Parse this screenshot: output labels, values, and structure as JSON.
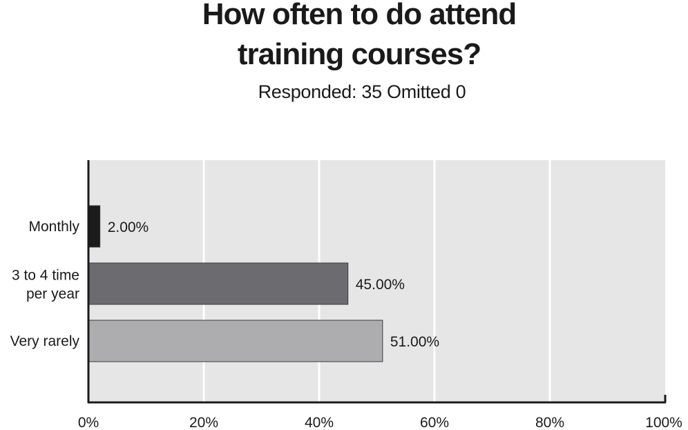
{
  "chart_data": {
    "type": "bar",
    "orientation": "horizontal",
    "title_lines": [
      "How often to do attend",
      "training courses?"
    ],
    "subtitle": "Responded: 35 Omitted 0",
    "categories": [
      "Monthly",
      "3 to 4 time per year",
      "Very rarely"
    ],
    "category_label_lines": [
      [
        "Monthly"
      ],
      [
        "3 to 4 time",
        "per year"
      ],
      [
        "Very rarely"
      ]
    ],
    "values": [
      2.0,
      45.0,
      51.0
    ],
    "value_labels": [
      "2.00%",
      "45.00%",
      "51.00%"
    ],
    "bar_colors": [
      "#1b1b1b",
      "#6c6c70",
      "#adadaf"
    ],
    "xlim": [
      0,
      100
    ],
    "xticks": [
      0,
      20,
      40,
      60,
      80,
      100
    ],
    "xtick_labels": [
      "0%",
      "20%",
      "40%",
      "60%",
      "80%",
      "100%"
    ],
    "grid": true,
    "plot_background": "#e6e6e6",
    "legend": "none"
  }
}
